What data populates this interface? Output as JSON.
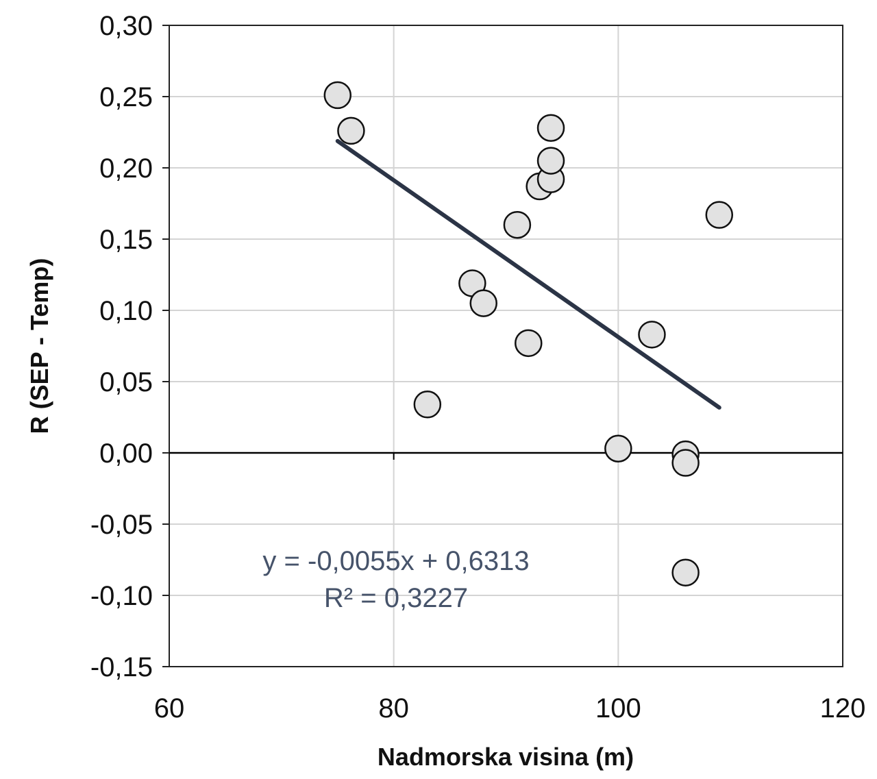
{
  "chart_data": {
    "type": "scatter",
    "title": "",
    "xlabel": "Nadmorska visina (m)",
    "ylabel": "R (SEP - Temp)",
    "xlim": [
      60,
      120
    ],
    "ylim": [
      -0.15,
      0.3
    ],
    "x_ticks": [
      "60",
      "80",
      "100",
      "120"
    ],
    "x_tick_values": [
      60,
      80,
      100,
      120
    ],
    "y_ticks": [
      "0,30",
      "0,25",
      "0,20",
      "0,15",
      "0,10",
      "0,05",
      "0,00",
      "-0,05",
      "-0,10",
      "-0,15"
    ],
    "y_tick_values": [
      0.3,
      0.25,
      0.2,
      0.15,
      0.1,
      0.05,
      0.0,
      -0.05,
      -0.1,
      -0.15
    ],
    "grid": true,
    "series": [
      {
        "x": [
          75,
          76.2,
          83,
          87,
          88,
          91,
          92,
          93,
          94,
          94,
          94,
          100,
          103,
          106,
          106,
          106,
          109
        ],
        "y": [
          0.251,
          0.226,
          0.034,
          0.119,
          0.105,
          0.16,
          0.077,
          0.187,
          0.192,
          0.228,
          0.205,
          0.003,
          0.083,
          -0.001,
          -0.007,
          -0.084,
          0.167
        ],
        "color": "#e2e2e2"
      }
    ],
    "trendline": {
      "type": "linear",
      "slope": -0.0055,
      "intercept": 0.6313,
      "x_range": [
        75,
        109
      ],
      "color": "#2b3446"
    },
    "annotations": [
      "y = -0,0055x + 0,6313",
      "R² = 0,3227"
    ]
  }
}
